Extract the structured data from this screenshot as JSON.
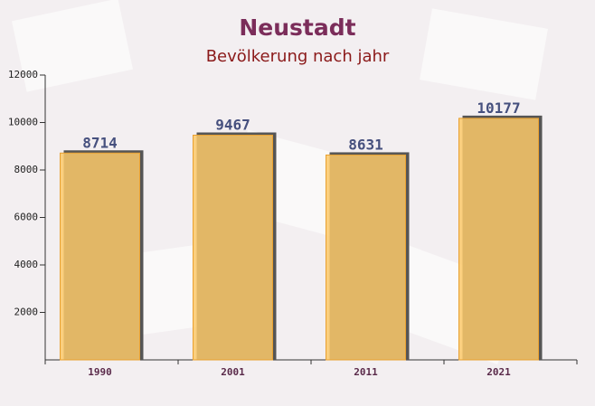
{
  "chart_data": {
    "type": "bar",
    "title": "Neustadt",
    "subtitle": "Bevölkerung nach jahr",
    "categories": [
      "1990",
      "2001",
      "2011",
      "2021"
    ],
    "values": [
      8714,
      9467,
      8631,
      10177
    ],
    "color": "#fcc96a",
    "ylim": [
      0,
      12000
    ],
    "yticks": [
      2000,
      4000,
      6000,
      8000,
      10000,
      12000
    ]
  }
}
